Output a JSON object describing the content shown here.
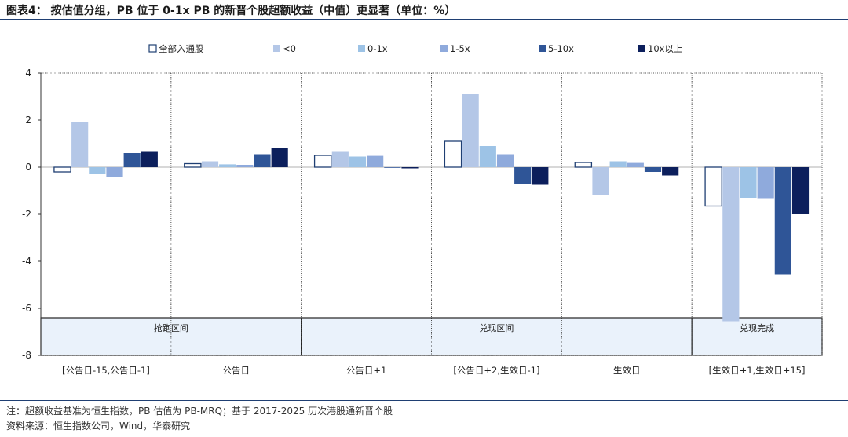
{
  "title": "图表4：  按估值分组，PB 位于 0-1x PB 的新晋个股超额收益（中值）更显著（单位：%）",
  "notes": {
    "note": "注：超额收益基准为恒生指数，PB 估值为 PB-MRQ；基于 2017-2025 历次港股通新晋个股",
    "source": "资料来源：恒生指数公司，Wind，华泰研究"
  },
  "chart_data": {
    "type": "bar",
    "categories": [
      "[公告日-15,公告日-1]",
      "公告日",
      "公告日+1",
      "[公告日+2,生效日-1]",
      "生效日",
      "[生效日+1,生效日+15]"
    ],
    "series": [
      {
        "name": "全部入通股",
        "color": "#ffffff",
        "values": [
          -0.2,
          0.15,
          0.5,
          1.1,
          0.2,
          -1.65
        ]
      },
      {
        "name": "<0",
        "color": "#b4c7e7",
        "values": [
          1.9,
          0.25,
          0.65,
          3.1,
          -1.2,
          -6.55
        ]
      },
      {
        "name": "0-1x",
        "color": "#9dc3e6",
        "values": [
          -0.3,
          0.12,
          0.45,
          0.9,
          0.25,
          -1.3
        ]
      },
      {
        "name": "1-5x",
        "color": "#8faadc",
        "values": [
          -0.4,
          0.1,
          0.48,
          0.55,
          0.18,
          -1.35
        ]
      },
      {
        "name": "5-10x",
        "color": "#2f5597",
        "values": [
          0.6,
          0.55,
          0.0,
          -0.7,
          -0.2,
          -4.55
        ]
      },
      {
        "name": "10x以上",
        "color": "#0c1f5c",
        "values": [
          0.65,
          0.8,
          -0.05,
          -0.75,
          -0.35,
          -2.0
        ]
      }
    ],
    "ylim": [
      -8,
      4
    ],
    "yticks": [
      4,
      2,
      0,
      -2,
      -4,
      -6,
      -8
    ],
    "legend_position": "top",
    "regions": [
      {
        "label": "抢跑区间",
        "from": 0,
        "to": 1
      },
      {
        "label": "兑现区间",
        "from": 2,
        "to": 4
      },
      {
        "label": "兑现完成",
        "from": 5,
        "to": 5
      }
    ],
    "grid": false
  }
}
